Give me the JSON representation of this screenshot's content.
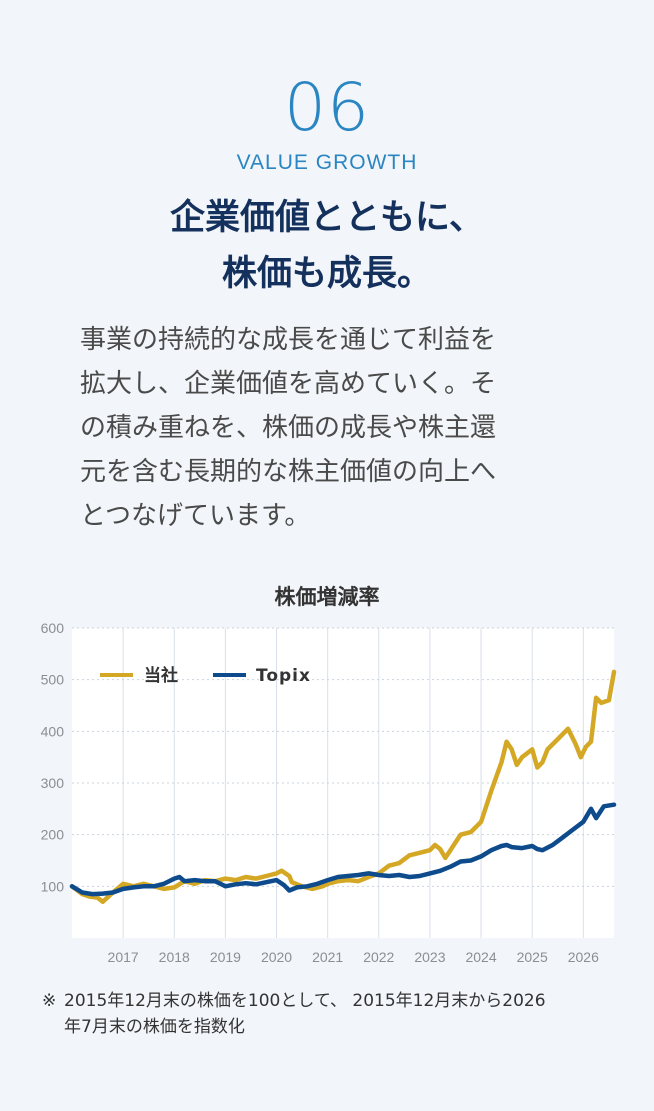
{
  "section": {
    "number": "06",
    "eyebrow": "VALUE GROWTH",
    "headline_lines": [
      "企業価値とともに、",
      "株価も成長。"
    ],
    "body_lines": [
      "事業の持続的な成長を通じて利益を",
      "拡大し、企業価値を高めていく。そ",
      "の積み重ねを、株価の成長や株主還",
      "元を含む長期的な株主価値の向上へ",
      "とつなげています。"
    ]
  },
  "colors": {
    "accent": "#2a86c2",
    "navy": "#14305c",
    "company_line": "#d4a825",
    "topix_line": "#0d4b8c"
  },
  "chart_data": {
    "type": "line",
    "title": "株価増減率",
    "ylim": [
      0,
      600
    ],
    "y_ticks": [
      100,
      200,
      300,
      400,
      500,
      600
    ],
    "x_tick_labels": [
      "2017",
      "2018",
      "2019",
      "2020",
      "2021",
      "2022",
      "2023",
      "2024",
      "2025",
      "2026"
    ],
    "x_tick_values": [
      2017,
      2018,
      2019,
      2020,
      2021,
      2022,
      2023,
      2024,
      2025,
      2026
    ],
    "xlim": [
      2016.0,
      2026.6
    ],
    "grid": true,
    "legend": "top-left",
    "series": [
      {
        "name": "当社",
        "points": [
          [
            2016.0,
            100
          ],
          [
            2016.2,
            85
          ],
          [
            2016.35,
            80
          ],
          [
            2016.5,
            78
          ],
          [
            2016.6,
            70
          ],
          [
            2016.8,
            88
          ],
          [
            2017.0,
            105
          ],
          [
            2017.2,
            100
          ],
          [
            2017.4,
            105
          ],
          [
            2017.6,
            100
          ],
          [
            2017.8,
            95
          ],
          [
            2018.0,
            98
          ],
          [
            2018.2,
            110
          ],
          [
            2018.4,
            105
          ],
          [
            2018.6,
            112
          ],
          [
            2018.8,
            110
          ],
          [
            2019.0,
            115
          ],
          [
            2019.2,
            112
          ],
          [
            2019.4,
            118
          ],
          [
            2019.6,
            115
          ],
          [
            2019.8,
            120
          ],
          [
            2020.0,
            125
          ],
          [
            2020.1,
            130
          ],
          [
            2020.25,
            120
          ],
          [
            2020.3,
            108
          ],
          [
            2020.5,
            100
          ],
          [
            2020.7,
            95
          ],
          [
            2020.9,
            100
          ],
          [
            2021.0,
            105
          ],
          [
            2021.2,
            110
          ],
          [
            2021.4,
            112
          ],
          [
            2021.6,
            110
          ],
          [
            2021.8,
            118
          ],
          [
            2022.0,
            125
          ],
          [
            2022.2,
            140
          ],
          [
            2022.4,
            145
          ],
          [
            2022.6,
            160
          ],
          [
            2022.8,
            165
          ],
          [
            2023.0,
            170
          ],
          [
            2023.1,
            180
          ],
          [
            2023.2,
            172
          ],
          [
            2023.3,
            155
          ],
          [
            2023.4,
            170
          ],
          [
            2023.5,
            185
          ],
          [
            2023.6,
            200
          ],
          [
            2023.8,
            205
          ],
          [
            2024.0,
            225
          ],
          [
            2024.2,
            285
          ],
          [
            2024.4,
            340
          ],
          [
            2024.5,
            380
          ],
          [
            2024.6,
            365
          ],
          [
            2024.7,
            335
          ],
          [
            2024.8,
            350
          ],
          [
            2025.0,
            365
          ],
          [
            2025.1,
            330
          ],
          [
            2025.2,
            340
          ],
          [
            2025.3,
            365
          ],
          [
            2025.5,
            385
          ],
          [
            2025.7,
            405
          ],
          [
            2025.85,
            375
          ],
          [
            2025.95,
            350
          ],
          [
            2026.05,
            370
          ],
          [
            2026.15,
            380
          ],
          [
            2026.25,
            465
          ],
          [
            2026.35,
            455
          ],
          [
            2026.5,
            460
          ],
          [
            2026.6,
            515
          ]
        ]
      },
      {
        "name": "Topix",
        "points": [
          [
            2016.0,
            100
          ],
          [
            2016.2,
            88
          ],
          [
            2016.4,
            85
          ],
          [
            2016.6,
            86
          ],
          [
            2016.8,
            88
          ],
          [
            2017.0,
            95
          ],
          [
            2017.2,
            98
          ],
          [
            2017.4,
            100
          ],
          [
            2017.6,
            100
          ],
          [
            2017.8,
            105
          ],
          [
            2018.0,
            115
          ],
          [
            2018.1,
            118
          ],
          [
            2018.2,
            110
          ],
          [
            2018.4,
            112
          ],
          [
            2018.6,
            110
          ],
          [
            2018.8,
            110
          ],
          [
            2019.0,
            100
          ],
          [
            2019.2,
            104
          ],
          [
            2019.4,
            106
          ],
          [
            2019.6,
            104
          ],
          [
            2019.8,
            108
          ],
          [
            2020.0,
            112
          ],
          [
            2020.15,
            102
          ],
          [
            2020.25,
            92
          ],
          [
            2020.4,
            98
          ],
          [
            2020.6,
            100
          ],
          [
            2020.8,
            105
          ],
          [
            2021.0,
            112
          ],
          [
            2021.2,
            118
          ],
          [
            2021.4,
            120
          ],
          [
            2021.6,
            122
          ],
          [
            2021.8,
            125
          ],
          [
            2022.0,
            122
          ],
          [
            2022.2,
            120
          ],
          [
            2022.4,
            122
          ],
          [
            2022.6,
            118
          ],
          [
            2022.8,
            120
          ],
          [
            2023.0,
            125
          ],
          [
            2023.2,
            130
          ],
          [
            2023.4,
            138
          ],
          [
            2023.6,
            148
          ],
          [
            2023.8,
            150
          ],
          [
            2024.0,
            158
          ],
          [
            2024.2,
            170
          ],
          [
            2024.4,
            178
          ],
          [
            2024.5,
            180
          ],
          [
            2024.6,
            176
          ],
          [
            2024.8,
            174
          ],
          [
            2025.0,
            178
          ],
          [
            2025.1,
            172
          ],
          [
            2025.2,
            170
          ],
          [
            2025.4,
            180
          ],
          [
            2025.6,
            195
          ],
          [
            2025.8,
            210
          ],
          [
            2026.0,
            225
          ],
          [
            2026.15,
            250
          ],
          [
            2026.25,
            232
          ],
          [
            2026.4,
            255
          ],
          [
            2026.6,
            258
          ]
        ]
      }
    ]
  },
  "footnote": {
    "mark": "※",
    "lines": [
      "2015年12月末の株価を100として、 2015年12月末から2026",
      "年7月末の株価を指数化"
    ]
  }
}
